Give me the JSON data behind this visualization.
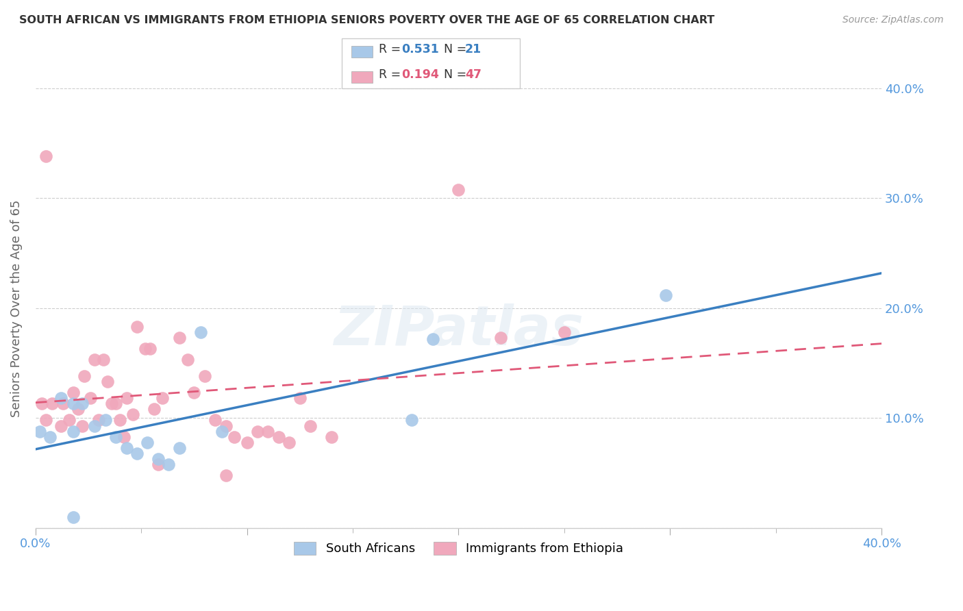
{
  "title": "SOUTH AFRICAN VS IMMIGRANTS FROM ETHIOPIA SENIORS POVERTY OVER THE AGE OF 65 CORRELATION CHART",
  "source": "Source: ZipAtlas.com",
  "ylabel": "Seniors Poverty Over the Age of 65",
  "xlim": [
    0.0,
    0.4
  ],
  "ylim": [
    0.0,
    0.4
  ],
  "background_color": "#ffffff",
  "grid_color": "#cccccc",
  "legend_R1": "0.531",
  "legend_N1": "21",
  "legend_R2": "0.194",
  "legend_N2": "47",
  "blue_color": "#a8c8e8",
  "pink_color": "#f0a8bc",
  "blue_line_color": "#3a7fc1",
  "pink_line_color": "#e05878",
  "axis_label_color": "#5599dd",
  "title_color": "#333333",
  "south_african_x": [
    0.002,
    0.007,
    0.012,
    0.018,
    0.018,
    0.022,
    0.028,
    0.033,
    0.038,
    0.043,
    0.048,
    0.053,
    0.058,
    0.063,
    0.068,
    0.078,
    0.088,
    0.178,
    0.188,
    0.298,
    0.018
  ],
  "south_african_y": [
    0.088,
    0.083,
    0.118,
    0.113,
    0.088,
    0.113,
    0.093,
    0.098,
    0.083,
    0.073,
    0.068,
    0.078,
    0.063,
    0.058,
    0.073,
    0.178,
    0.088,
    0.098,
    0.172,
    0.212,
    0.01
  ],
  "ethiopia_x": [
    0.003,
    0.005,
    0.008,
    0.012,
    0.013,
    0.016,
    0.018,
    0.02,
    0.022,
    0.023,
    0.026,
    0.028,
    0.03,
    0.032,
    0.034,
    0.036,
    0.038,
    0.04,
    0.042,
    0.043,
    0.046,
    0.048,
    0.052,
    0.054,
    0.056,
    0.06,
    0.068,
    0.072,
    0.075,
    0.08,
    0.085,
    0.09,
    0.094,
    0.1,
    0.105,
    0.11,
    0.115,
    0.12,
    0.125,
    0.13,
    0.14,
    0.2,
    0.22,
    0.25,
    0.09,
    0.005,
    0.058
  ],
  "ethiopia_y": [
    0.113,
    0.098,
    0.113,
    0.093,
    0.113,
    0.098,
    0.123,
    0.108,
    0.093,
    0.138,
    0.118,
    0.153,
    0.098,
    0.153,
    0.133,
    0.113,
    0.113,
    0.098,
    0.083,
    0.118,
    0.103,
    0.183,
    0.163,
    0.163,
    0.108,
    0.118,
    0.173,
    0.153,
    0.123,
    0.138,
    0.098,
    0.093,
    0.083,
    0.078,
    0.088,
    0.088,
    0.083,
    0.078,
    0.118,
    0.093,
    0.083,
    0.308,
    0.173,
    0.178,
    0.048,
    0.338,
    0.058
  ]
}
